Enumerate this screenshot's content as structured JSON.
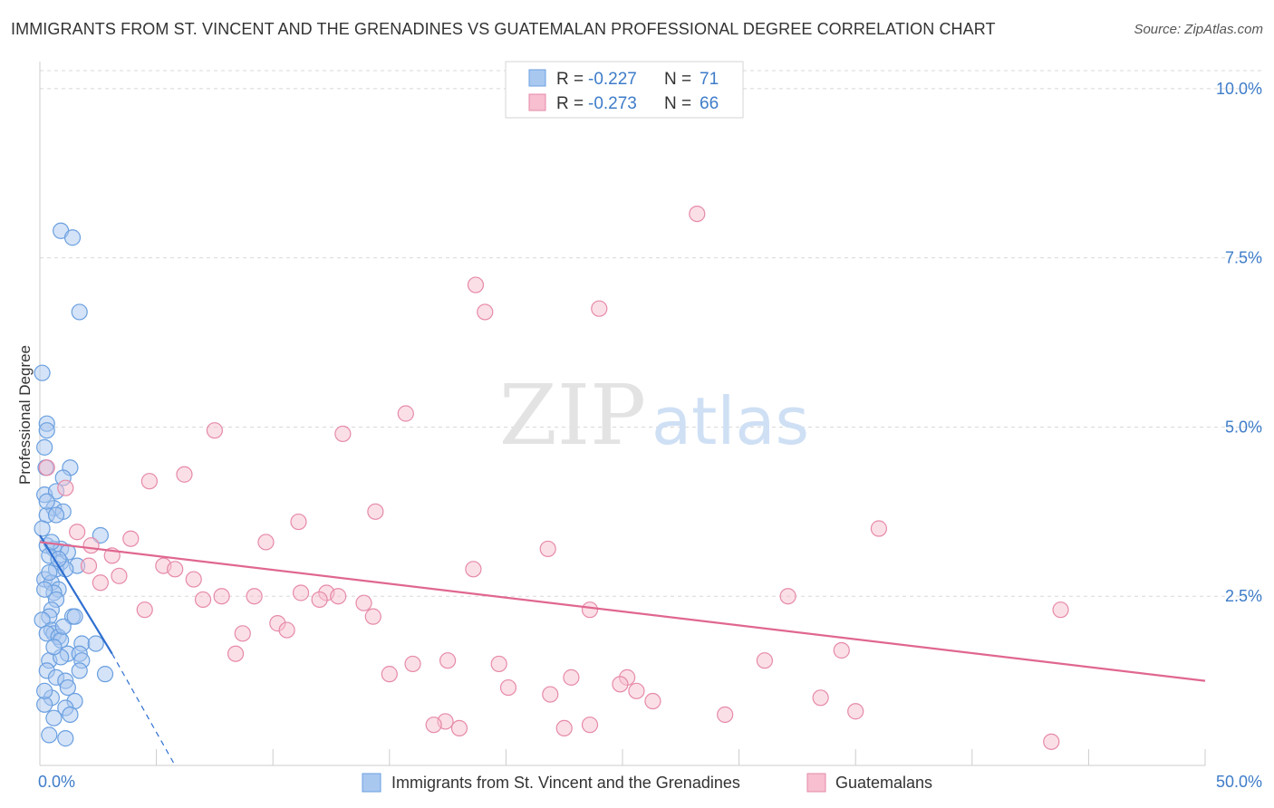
{
  "title": "IMMIGRANTS FROM ST. VINCENT AND THE GRENADINES VS GUATEMALAN PROFESSIONAL DEGREE CORRELATION CHART",
  "source": "Source: ZipAtlas.com",
  "watermark": {
    "zip": "ZIP",
    "atlas": "atlas"
  },
  "colors": {
    "blue_fill": "#a9c8f0",
    "blue_stroke": "#6a9fe0",
    "blue_line": "#2f6fd0",
    "pink_fill": "#f7bfd0",
    "pink_stroke": "#e68aa8",
    "pink_line": "#e0678f",
    "tick_text": "#3d7cc9",
    "grid": "#d8d8d8"
  },
  "legend": {
    "rows": [
      {
        "r_label": "R = ",
        "r_value": "-0.227",
        "n_label": "N = ",
        "n_value": "71"
      },
      {
        "r_label": "R = ",
        "r_value": "-0.273",
        "n_label": "N = ",
        "n_value": "66"
      }
    ]
  },
  "bottom_legend": [
    {
      "label": "Immigrants from St. Vincent and the Grenadines"
    },
    {
      "label": "Guatemalans"
    }
  ],
  "chart_data": {
    "type": "scatter",
    "xlabel": "",
    "ylabel": "Professional Degree",
    "xlim": [
      0,
      50
    ],
    "ylim": [
      0,
      10.4
    ],
    "x_tick_labels": [
      {
        "value": 0,
        "label": "0.0%"
      },
      {
        "value": 50,
        "label": "50.0%"
      }
    ],
    "y_tick_labels": [
      {
        "value": 2.5,
        "label": "2.5%"
      },
      {
        "value": 5.0,
        "label": "5.0%"
      },
      {
        "value": 7.5,
        "label": "7.5%"
      },
      {
        "value": 10.0,
        "label": "10.0%"
      }
    ],
    "x_minor_ticks": [
      5,
      10,
      15,
      20,
      25,
      30,
      35,
      40,
      45,
      50
    ],
    "grid": true,
    "legend_position": "top-center",
    "series": [
      {
        "name": "Immigrants from St. Vincent and the Grenadines",
        "color": "#a9c8f0",
        "points": [
          [
            0.1,
            5.8
          ],
          [
            0.9,
            7.9
          ],
          [
            1.4,
            7.8
          ],
          [
            1.7,
            6.7
          ],
          [
            0.3,
            5.05
          ],
          [
            0.3,
            4.95
          ],
          [
            0.2,
            4.7
          ],
          [
            0.25,
            4.4
          ],
          [
            1.3,
            4.4
          ],
          [
            1.0,
            4.25
          ],
          [
            0.2,
            4.0
          ],
          [
            0.7,
            4.05
          ],
          [
            0.6,
            3.8
          ],
          [
            1.0,
            3.75
          ],
          [
            0.3,
            3.7
          ],
          [
            0.7,
            3.7
          ],
          [
            0.1,
            3.5
          ],
          [
            2.6,
            3.4
          ],
          [
            0.3,
            3.25
          ],
          [
            0.6,
            3.2
          ],
          [
            0.9,
            3.2
          ],
          [
            0.4,
            3.1
          ],
          [
            0.9,
            3.0
          ],
          [
            1.6,
            2.95
          ],
          [
            0.7,
            2.9
          ],
          [
            1.1,
            2.9
          ],
          [
            0.2,
            2.75
          ],
          [
            0.5,
            2.7
          ],
          [
            0.8,
            2.6
          ],
          [
            0.6,
            2.55
          ],
          [
            0.7,
            2.45
          ],
          [
            0.5,
            2.3
          ],
          [
            0.4,
            2.2
          ],
          [
            0.1,
            2.15
          ],
          [
            1.4,
            2.2
          ],
          [
            1.5,
            2.2
          ],
          [
            0.5,
            2.0
          ],
          [
            0.6,
            1.95
          ],
          [
            0.3,
            1.95
          ],
          [
            0.8,
            1.9
          ],
          [
            0.9,
            1.85
          ],
          [
            1.8,
            1.8
          ],
          [
            2.4,
            1.8
          ],
          [
            1.2,
            1.65
          ],
          [
            1.7,
            1.65
          ],
          [
            1.8,
            1.55
          ],
          [
            0.4,
            1.55
          ],
          [
            0.3,
            1.4
          ],
          [
            1.7,
            1.4
          ],
          [
            2.8,
            1.35
          ],
          [
            0.7,
            1.3
          ],
          [
            1.1,
            1.25
          ],
          [
            1.2,
            1.15
          ],
          [
            0.5,
            1.0
          ],
          [
            1.5,
            0.95
          ],
          [
            1.1,
            0.85
          ],
          [
            1.3,
            0.75
          ],
          [
            0.6,
            0.7
          ],
          [
            0.4,
            0.45
          ],
          [
            1.1,
            0.4
          ],
          [
            0.2,
            0.9
          ],
          [
            0.9,
            1.6
          ],
          [
            0.2,
            2.6
          ],
          [
            0.5,
            3.3
          ],
          [
            1.2,
            3.15
          ],
          [
            0.8,
            3.05
          ],
          [
            0.3,
            3.9
          ],
          [
            0.4,
            2.85
          ],
          [
            1.0,
            2.05
          ],
          [
            0.6,
            1.75
          ],
          [
            0.2,
            1.1
          ]
        ],
        "trend": {
          "x": [
            0,
            3.1
          ],
          "y": [
            3.4,
            1.65
          ]
        },
        "trend_extension": {
          "x": [
            3.1,
            5.8
          ],
          "y": [
            1.65,
            0.0
          ]
        }
      },
      {
        "name": "Guatemalans",
        "color": "#f7bfd0",
        "points": [
          [
            0.3,
            4.4
          ],
          [
            1.1,
            4.1
          ],
          [
            28.2,
            8.15
          ],
          [
            18.7,
            7.1
          ],
          [
            19.1,
            6.7
          ],
          [
            24.0,
            6.75
          ],
          [
            15.7,
            5.2
          ],
          [
            7.5,
            4.95
          ],
          [
            13.0,
            4.9
          ],
          [
            4.7,
            4.2
          ],
          [
            6.2,
            4.3
          ],
          [
            14.4,
            3.75
          ],
          [
            11.1,
            3.6
          ],
          [
            36.0,
            3.5
          ],
          [
            1.6,
            3.45
          ],
          [
            3.9,
            3.35
          ],
          [
            9.7,
            3.3
          ],
          [
            2.2,
            3.25
          ],
          [
            21.8,
            3.2
          ],
          [
            3.1,
            3.1
          ],
          [
            5.3,
            2.95
          ],
          [
            2.1,
            2.95
          ],
          [
            5.8,
            2.9
          ],
          [
            18.6,
            2.9
          ],
          [
            3.4,
            2.8
          ],
          [
            6.6,
            2.75
          ],
          [
            2.6,
            2.7
          ],
          [
            11.2,
            2.55
          ],
          [
            12.3,
            2.55
          ],
          [
            12.8,
            2.5
          ],
          [
            7.8,
            2.5
          ],
          [
            9.2,
            2.5
          ],
          [
            12.0,
            2.45
          ],
          [
            32.1,
            2.5
          ],
          [
            7.0,
            2.45
          ],
          [
            13.9,
            2.4
          ],
          [
            4.5,
            2.3
          ],
          [
            23.6,
            2.3
          ],
          [
            43.8,
            2.3
          ],
          [
            14.3,
            2.2
          ],
          [
            10.2,
            2.1
          ],
          [
            10.6,
            2.0
          ],
          [
            8.7,
            1.95
          ],
          [
            34.4,
            1.7
          ],
          [
            8.4,
            1.65
          ],
          [
            31.1,
            1.55
          ],
          [
            17.5,
            1.55
          ],
          [
            19.7,
            1.5
          ],
          [
            16.0,
            1.5
          ],
          [
            15.0,
            1.35
          ],
          [
            22.8,
            1.3
          ],
          [
            25.2,
            1.3
          ],
          [
            24.9,
            1.2
          ],
          [
            20.1,
            1.15
          ],
          [
            21.9,
            1.05
          ],
          [
            25.6,
            1.1
          ],
          [
            26.3,
            0.95
          ],
          [
            33.5,
            1.0
          ],
          [
            35.0,
            0.8
          ],
          [
            29.4,
            0.75
          ],
          [
            17.4,
            0.65
          ],
          [
            16.9,
            0.6
          ],
          [
            18.0,
            0.55
          ],
          [
            22.5,
            0.55
          ],
          [
            23.6,
            0.6
          ],
          [
            43.4,
            0.35
          ]
        ],
        "trend": {
          "x": [
            0,
            50
          ],
          "y": [
            3.3,
            1.25
          ]
        }
      }
    ]
  }
}
